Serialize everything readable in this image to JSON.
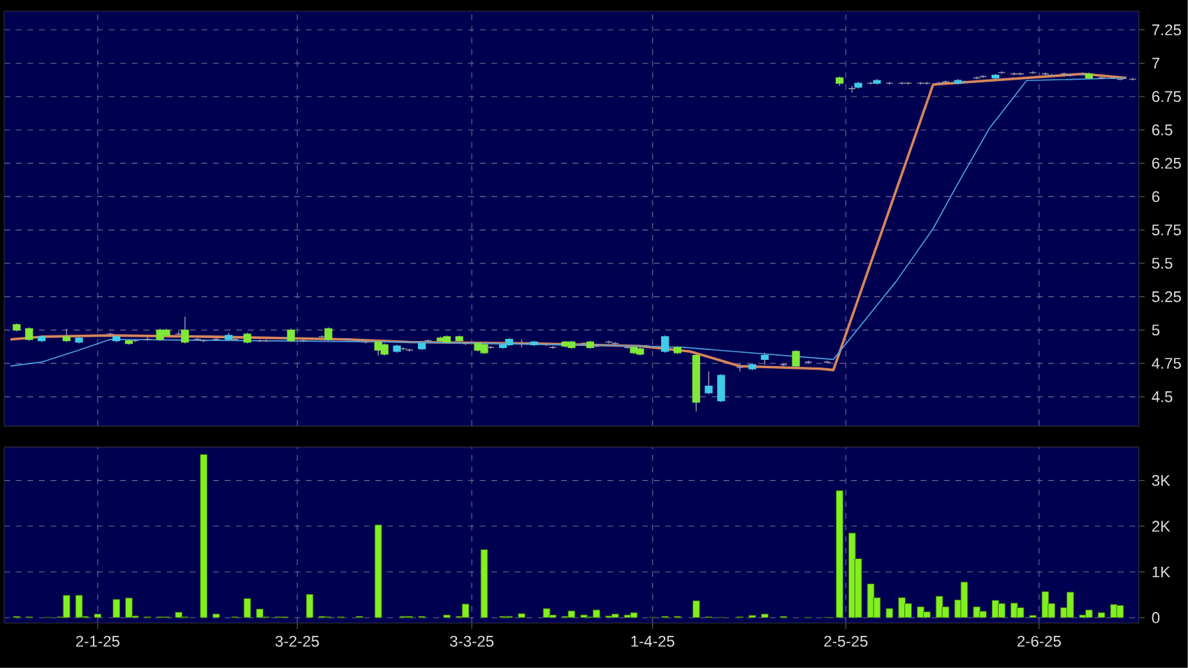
{
  "chart_data": [
    {
      "type": "candlestick",
      "xlim": [
        "2024-12-18",
        "2025-06-18"
      ],
      "ylim": [
        4.28,
        7.39
      ],
      "yticks": [
        4.5,
        4.75,
        5,
        5.25,
        5.5,
        5.75,
        6,
        6.25,
        6.5,
        6.75,
        7,
        7.25
      ],
      "xticks": [
        {
          "value": "2025-01-02",
          "label": null
        },
        {
          "value": "2025-02-03",
          "label": null
        },
        {
          "value": "2025-03-03",
          "label": null
        },
        {
          "value": "2025-04-01",
          "label": null
        },
        {
          "value": "2025-05-02",
          "label": null
        },
        {
          "value": "2025-06-02",
          "label": null
        }
      ],
      "grid": true,
      "tick_labels": "y",
      "x": [
        "2024-12-20",
        "2024-12-22",
        "2024-12-24",
        "2024-12-28",
        "2024-12-30",
        "2025-01-04",
        "2025-01-05",
        "2025-01-07",
        "2025-01-08",
        "2025-01-10",
        "2025-01-12",
        "2025-01-13",
        "2025-01-15",
        "2025-01-16",
        "2025-01-18",
        "2025-01-19",
        "2025-01-21",
        "2025-01-23",
        "2025-01-24",
        "2025-01-26",
        "2025-01-28",
        "2025-01-29",
        "2025-02-01",
        "2025-02-02",
        "2025-02-04",
        "2025-02-07",
        "2025-02-08",
        "2025-02-11",
        "2025-02-13",
        "2025-02-14",
        "2025-02-16",
        "2025-02-17",
        "2025-02-19",
        "2025-02-20",
        "2025-02-21",
        "2025-02-23",
        "2025-02-24",
        "2025-02-26",
        "2025-02-27",
        "2025-03-01",
        "2025-03-02",
        "2025-03-04",
        "2025-03-05",
        "2025-03-06",
        "2025-03-08",
        "2025-03-09",
        "2025-03-11",
        "2025-03-12",
        "2025-03-13",
        "2025-03-15",
        "2025-03-16",
        "2025-03-18",
        "2025-03-19",
        "2025-03-21",
        "2025-03-22",
        "2025-03-23",
        "2025-03-25",
        "2025-03-26",
        "2025-03-28",
        "2025-03-29",
        "2025-03-30",
        "2025-03-31",
        "2025-04-03",
        "2025-04-05",
        "2025-04-08",
        "2025-04-10",
        "2025-04-12",
        "2025-04-15",
        "2025-04-17",
        "2025-04-19",
        "2025-04-22",
        "2025-04-24",
        "2025-04-26",
        "2025-04-29",
        "2025-05-01",
        "2025-05-03",
        "2025-05-04",
        "2025-05-06",
        "2025-05-07",
        "2025-05-09",
        "2025-05-11",
        "2025-05-12",
        "2025-05-14",
        "2025-05-15",
        "2025-05-17",
        "2025-05-18",
        "2025-05-20",
        "2025-05-21",
        "2025-05-23",
        "2025-05-24",
        "2025-05-26",
        "2025-05-27",
        "2025-05-29",
        "2025-05-30",
        "2025-06-01",
        "2025-06-03",
        "2025-06-04",
        "2025-06-06",
        "2025-06-07",
        "2025-06-09",
        "2025-06-10",
        "2025-06-12",
        "2025-06-14",
        "2025-06-15",
        "2025-06-17"
      ],
      "ohlc": [
        [
          5.04,
          5.05,
          4.99,
          5.0
        ],
        [
          5.01,
          5.02,
          4.92,
          4.93
        ],
        [
          4.92,
          4.96,
          4.91,
          4.95
        ],
        [
          4.95,
          5.01,
          4.91,
          4.92
        ],
        [
          4.91,
          4.95,
          4.9,
          4.94
        ],
        [
          4.97,
          4.98,
          4.96,
          4.97
        ],
        [
          4.92,
          4.96,
          4.91,
          4.95
        ],
        [
          4.92,
          4.93,
          4.89,
          4.9
        ],
        [
          4.92,
          4.93,
          4.91,
          4.92
        ],
        [
          4.93,
          4.95,
          4.92,
          4.93
        ],
        [
          5.0,
          5.01,
          4.92,
          4.93
        ],
        [
          5.0,
          5.01,
          4.95,
          4.96
        ],
        [
          4.97,
          4.99,
          4.96,
          4.97
        ],
        [
          5.0,
          5.1,
          4.9,
          4.91
        ],
        [
          4.93,
          4.94,
          4.92,
          4.93
        ],
        [
          4.92,
          4.93,
          4.91,
          4.92
        ],
        [
          4.93,
          4.94,
          4.92,
          4.93
        ],
        [
          4.93,
          4.98,
          4.92,
          4.96
        ],
        [
          4.93,
          4.94,
          4.92,
          4.93
        ],
        [
          4.97,
          4.98,
          4.9,
          4.91
        ],
        [
          4.92,
          4.93,
          4.91,
          4.92
        ],
        [
          4.92,
          4.93,
          4.91,
          4.92
        ],
        [
          4.94,
          4.95,
          4.93,
          4.94
        ],
        [
          5.0,
          5.01,
          4.91,
          4.92
        ],
        [
          4.92,
          4.93,
          4.91,
          4.92
        ],
        [
          4.95,
          4.96,
          4.94,
          4.95
        ],
        [
          5.01,
          5.02,
          4.92,
          4.93
        ],
        [
          4.93,
          4.94,
          4.92,
          4.93
        ],
        [
          4.92,
          4.93,
          4.91,
          4.92
        ],
        [
          4.91,
          4.92,
          4.9,
          4.91
        ],
        [
          4.91,
          4.92,
          4.81,
          4.85
        ],
        [
          4.89,
          4.9,
          4.81,
          4.82
        ],
        [
          4.84,
          4.89,
          4.83,
          4.88
        ],
        [
          4.86,
          4.87,
          4.85,
          4.86
        ],
        [
          4.85,
          4.86,
          4.84,
          4.85
        ],
        [
          4.86,
          4.91,
          4.85,
          4.9
        ],
        [
          4.92,
          4.93,
          4.91,
          4.92
        ],
        [
          4.94,
          4.95,
          4.91,
          4.92
        ],
        [
          4.95,
          4.96,
          4.9,
          4.91
        ],
        [
          4.95,
          4.96,
          4.91,
          4.92
        ],
        [
          4.9,
          4.91,
          4.89,
          4.9
        ],
        [
          4.9,
          4.91,
          4.84,
          4.85
        ],
        [
          4.89,
          4.9,
          4.82,
          4.83
        ],
        [
          4.87,
          4.88,
          4.86,
          4.87
        ],
        [
          4.87,
          4.9,
          4.86,
          4.89
        ],
        [
          4.89,
          4.94,
          4.88,
          4.93
        ],
        [
          4.9,
          4.93,
          4.87,
          4.9
        ],
        [
          4.9,
          4.91,
          4.89,
          4.9
        ],
        [
          4.89,
          4.92,
          4.88,
          4.91
        ],
        [
          4.89,
          4.9,
          4.88,
          4.89
        ],
        [
          4.87,
          4.88,
          4.86,
          4.87
        ],
        [
          4.91,
          4.92,
          4.87,
          4.88
        ],
        [
          4.91,
          4.92,
          4.86,
          4.87
        ],
        [
          4.9,
          4.91,
          4.89,
          4.9
        ],
        [
          4.91,
          4.92,
          4.86,
          4.87
        ],
        [
          4.88,
          4.89,
          4.87,
          4.88
        ],
        [
          4.91,
          4.92,
          4.9,
          4.91
        ],
        [
          4.9,
          4.91,
          4.89,
          4.9
        ],
        [
          4.87,
          4.88,
          4.86,
          4.87
        ],
        [
          4.87,
          4.88,
          4.82,
          4.83
        ],
        [
          4.86,
          4.87,
          4.81,
          4.82
        ],
        [
          4.88,
          4.89,
          4.87,
          4.88
        ],
        [
          4.84,
          4.96,
          4.83,
          4.95
        ],
        [
          4.87,
          4.88,
          4.82,
          4.83
        ],
        [
          4.81,
          4.82,
          4.39,
          4.46
        ],
        [
          4.53,
          4.69,
          4.52,
          4.58
        ],
        [
          4.47,
          4.67,
          4.46,
          4.66
        ],
        [
          4.72,
          4.75,
          4.69,
          4.72
        ],
        [
          4.71,
          4.75,
          4.7,
          4.74
        ],
        [
          4.78,
          4.83,
          4.74,
          4.81
        ],
        [
          4.74,
          4.75,
          4.73,
          4.74
        ],
        [
          4.84,
          4.85,
          4.72,
          4.73
        ],
        [
          4.76,
          4.77,
          4.75,
          4.76
        ],
        [
          4.76,
          4.77,
          4.75,
          4.76
        ],
        [
          6.89,
          6.9,
          6.83,
          6.85
        ],
        [
          6.81,
          6.83,
          6.78,
          6.81
        ],
        [
          6.82,
          6.86,
          6.81,
          6.85
        ],
        [
          6.85,
          6.86,
          6.84,
          6.85
        ],
        [
          6.85,
          6.88,
          6.84,
          6.87
        ],
        [
          6.85,
          6.86,
          6.84,
          6.85
        ],
        [
          6.85,
          6.86,
          6.84,
          6.85
        ],
        [
          6.85,
          6.86,
          6.84,
          6.85
        ],
        [
          6.85,
          6.86,
          6.84,
          6.85
        ],
        [
          6.85,
          6.86,
          6.84,
          6.85
        ],
        [
          6.85,
          6.86,
          6.84,
          6.85
        ],
        [
          6.86,
          6.87,
          6.85,
          6.86
        ],
        [
          6.85,
          6.88,
          6.84,
          6.87
        ],
        [
          6.86,
          6.87,
          6.85,
          6.86
        ],
        [
          6.89,
          6.9,
          6.88,
          6.89
        ],
        [
          6.9,
          6.91,
          6.89,
          6.9
        ],
        [
          6.89,
          6.92,
          6.88,
          6.91
        ],
        [
          6.93,
          6.94,
          6.92,
          6.93
        ],
        [
          6.92,
          6.93,
          6.91,
          6.92
        ],
        [
          6.92,
          6.93,
          6.91,
          6.92
        ],
        [
          6.93,
          6.94,
          6.92,
          6.93
        ],
        [
          6.92,
          6.93,
          6.91,
          6.92
        ],
        [
          6.91,
          6.92,
          6.9,
          6.91
        ],
        [
          6.92,
          6.93,
          6.91,
          6.92
        ],
        [
          6.91,
          6.92,
          6.9,
          6.91
        ],
        [
          6.92,
          6.93,
          6.91,
          6.92
        ],
        [
          6.92,
          6.93,
          6.88,
          6.89
        ],
        [
          6.89,
          6.9,
          6.88,
          6.89
        ],
        [
          6.89,
          6.9,
          6.88,
          6.89
        ],
        [
          6.88,
          6.89,
          6.87,
          6.88
        ],
        [
          6.88,
          6.89,
          6.87,
          6.88
        ]
      ],
      "colors": [
        "#80e838",
        "#80e838",
        "#40cce8",
        "#80e838",
        "#40cce8",
        "#9a9aa8",
        "#40cce8",
        "#80e838",
        "#9a9aa8",
        "#9a9aa8",
        "#80e838",
        "#80e838",
        "#9a9aa8",
        "#80e838",
        "#9a9aa8",
        "#9a9aa8",
        "#9a9aa8",
        "#40cce8",
        "#9a9aa8",
        "#80e838",
        "#9a9aa8",
        "#9a9aa8",
        "#9a9aa8",
        "#80e838",
        "#9a9aa8",
        "#9a9aa8",
        "#80e838",
        "#9a9aa8",
        "#9a9aa8",
        "#9a9aa8",
        "#80e838",
        "#80e838",
        "#40cce8",
        "#9a9aa8",
        "#9a9aa8",
        "#40cce8",
        "#9a9aa8",
        "#80e838",
        "#80e838",
        "#80e838",
        "#9a9aa8",
        "#80e838",
        "#80e838",
        "#9a9aa8",
        "#40cce8",
        "#40cce8",
        "#9a9aa8",
        "#9a9aa8",
        "#40cce8",
        "#9a9aa8",
        "#9a9aa8",
        "#80e838",
        "#80e838",
        "#9a9aa8",
        "#80e838",
        "#9a9aa8",
        "#9a9aa8",
        "#9a9aa8",
        "#9a9aa8",
        "#80e838",
        "#80e838",
        "#9a9aa8",
        "#40cce8",
        "#80e838",
        "#80e838",
        "#40cce8",
        "#40cce8",
        "#9a9aa8",
        "#40cce8",
        "#40cce8",
        "#9a9aa8",
        "#80e838",
        "#9a9aa8",
        "#9a9aa8",
        "#80e838",
        "#9a9aa8",
        "#40cce8",
        "#9a9aa8",
        "#40cce8",
        "#9a9aa8",
        "#9a9aa8",
        "#9a9aa8",
        "#9a9aa8",
        "#9a9aa8",
        "#9a9aa8",
        "#9a9aa8",
        "#40cce8",
        "#9a9aa8",
        "#9a9aa8",
        "#9a9aa8",
        "#40cce8",
        "#9a9aa8",
        "#9a9aa8",
        "#9a9aa8",
        "#9a9aa8",
        "#9a9aa8",
        "#9a9aa8",
        "#9a9aa8",
        "#9a9aa8",
        "#9a9aa8",
        "#80e838",
        "#9a9aa8",
        "#9a9aa8",
        "#9a9aa8",
        "#9a9aa8"
      ],
      "series": [
        {
          "type": "line",
          "color": "#d9865a",
          "x": [
            "2024-12-19",
            "2024-12-24",
            "2025-01-04",
            "2025-01-20",
            "2025-02-11",
            "2025-02-21",
            "2025-03-12",
            "2025-03-30",
            "2025-04-07",
            "2025-04-15",
            "2025-04-28",
            "2025-04-30",
            "2025-05-16",
            "2025-05-31",
            "2025-06-09",
            "2025-06-16"
          ],
          "values": [
            4.93,
            4.95,
            4.96,
            4.95,
            4.93,
            4.91,
            4.9,
            4.88,
            4.84,
            4.73,
            4.71,
            4.7,
            6.84,
            6.89,
            6.92,
            6.89
          ]
        },
        {
          "type": "line",
          "color": "#4a9fe0",
          "x": [
            "2024-12-19",
            "2024-12-24",
            "2024-12-30",
            "2025-01-04",
            "2025-02-21",
            "2025-03-30",
            "2025-04-06",
            "2025-04-30",
            "2025-05-10",
            "2025-05-16",
            "2025-05-20",
            "2025-05-25",
            "2025-05-31",
            "2025-06-16"
          ],
          "values": [
            4.73,
            4.76,
            4.85,
            4.93,
            4.91,
            4.88,
            4.87,
            4.78,
            5.36,
            5.76,
            6.1,
            6.51,
            6.87,
            6.89
          ]
        }
      ]
    },
    {
      "type": "bar",
      "color": "#80f020",
      "xlim": [
        "2024-12-18",
        "2025-06-18"
      ],
      "ylim": [
        -0.12,
        3.73
      ],
      "yticks": [
        0,
        {
          "value": 1,
          "label": "1K"
        },
        {
          "value": 2,
          "label": "2K"
        },
        {
          "value": 3,
          "label": "3K"
        }
      ],
      "xticks": [
        {
          "value": "2025-01-02",
          "label": "2-1-25"
        },
        {
          "value": "2025-02-03",
          "label": "3-2-25"
        },
        {
          "value": "2025-03-03",
          "label": "3-3-25"
        },
        {
          "value": "2025-04-01",
          "label": "1-4-25"
        },
        {
          "value": "2025-05-02",
          "label": "2-5-25"
        },
        {
          "value": "2025-06-02",
          "label": "2-6-25"
        }
      ],
      "grid": true,
      "x": [
        "2024-12-20",
        "2024-12-22",
        "2024-12-25",
        "2024-12-27",
        "2024-12-28",
        "2024-12-30",
        "2024-12-31",
        "2025-01-02",
        "2025-01-05",
        "2025-01-07",
        "2025-01-08",
        "2025-01-10",
        "2025-01-12",
        "2025-01-13",
        "2025-01-15",
        "2025-01-16",
        "2025-01-19",
        "2025-01-21",
        "2025-01-24",
        "2025-01-26",
        "2025-01-28",
        "2025-01-29",
        "2025-01-31",
        "2025-02-01",
        "2025-02-05",
        "2025-02-07",
        "2025-02-08",
        "2025-02-10",
        "2025-02-13",
        "2025-02-16",
        "2025-02-20",
        "2025-02-21",
        "2025-02-23",
        "2025-02-27",
        "2025-03-01",
        "2025-03-02",
        "2025-03-05",
        "2025-03-08",
        "2025-03-09",
        "2025-03-11",
        "2025-03-15",
        "2025-03-16",
        "2025-03-18",
        "2025-03-19",
        "2025-03-21",
        "2025-03-22",
        "2025-03-23",
        "2025-03-25",
        "2025-03-26",
        "2025-03-28",
        "2025-03-29",
        "2025-04-01",
        "2025-04-03",
        "2025-04-05",
        "2025-04-08",
        "2025-04-10",
        "2025-04-12",
        "2025-04-15",
        "2025-04-17",
        "2025-04-19",
        "2025-04-22",
        "2025-04-26",
        "2025-04-29",
        "2025-05-01",
        "2025-05-03",
        "2025-05-04",
        "2025-05-06",
        "2025-05-07",
        "2025-05-09",
        "2025-05-11",
        "2025-05-12",
        "2025-05-14",
        "2025-05-15",
        "2025-05-17",
        "2025-05-18",
        "2025-05-20",
        "2025-05-21",
        "2025-05-23",
        "2025-05-24",
        "2025-05-26",
        "2025-05-27",
        "2025-05-29",
        "2025-05-30",
        "2025-06-01",
        "2025-06-03",
        "2025-06-04",
        "2025-06-06",
        "2025-06-07",
        "2025-06-09",
        "2025-06-10",
        "2025-06-12",
        "2025-06-14",
        "2025-06-15"
      ],
      "values": [
        0.03,
        0.02,
        0.01,
        0.02,
        0.49,
        0.49,
        0.03,
        0.08,
        0.4,
        0.43,
        0.04,
        0.02,
        0.02,
        0.02,
        0.12,
        0.02,
        3.57,
        0.08,
        0.02,
        0.42,
        0.19,
        0.02,
        0.02,
        0.02,
        0.51,
        0.03,
        0.02,
        0.02,
        0.03,
        2.03,
        0.03,
        0.03,
        0.03,
        0.06,
        0.03,
        0.3,
        1.49,
        0.03,
        0.03,
        0.09,
        0.2,
        0.06,
        0.03,
        0.15,
        0.06,
        0.02,
        0.17,
        0.04,
        0.08,
        0.06,
        0.11,
        0.01,
        0.03,
        0.03,
        0.37,
        0.02,
        0.01,
        0.02,
        0.05,
        0.08,
        0.03,
        0.01,
        0.01,
        2.78,
        1.85,
        1.29,
        0.74,
        0.44,
        0.2,
        0.44,
        0.31,
        0.24,
        0.13,
        0.47,
        0.24,
        0.39,
        0.78,
        0.24,
        0.14,
        0.38,
        0.31,
        0.32,
        0.22,
        0.05,
        0.57,
        0.31,
        0.22,
        0.56,
        0.06,
        0.17,
        0.11,
        0.29,
        0.27
      ]
    }
  ]
}
